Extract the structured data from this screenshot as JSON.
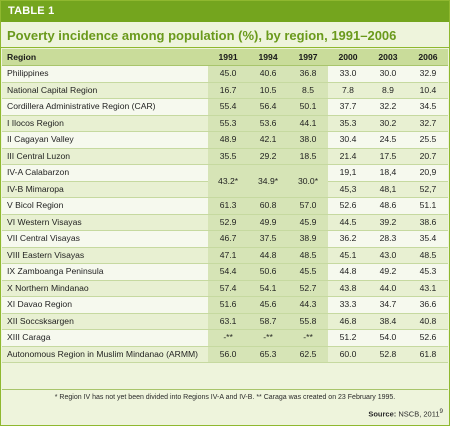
{
  "label": "TABLE 1",
  "title": "Poverty incidence among population (%), by region, 1991–2006",
  "headers": [
    "Region",
    "1991",
    "1994",
    "1997",
    "2000",
    "2003",
    "2006"
  ],
  "rows": [
    {
      "region": "Philippines",
      "v": [
        "45.0",
        "40.6",
        "36.8",
        "33.0",
        "30.0",
        "32.9"
      ]
    },
    {
      "region": "National Capital Region",
      "v": [
        "16.7",
        "10.5",
        "8.5",
        "7.8",
        "8.9",
        "10.4"
      ]
    },
    {
      "region": "Cordillera Administrative Region (CAR)",
      "v": [
        "55.4",
        "56.4",
        "50.1",
        "37.7",
        "32.2",
        "34.5"
      ]
    },
    {
      "region": "I Ilocos Region",
      "v": [
        "55.3",
        "53.6",
        "44.1",
        "35.3",
        "30.2",
        "32.7"
      ]
    },
    {
      "region": "II Cagayan Valley",
      "v": [
        "48.9",
        "42.1",
        "38.0",
        "30.4",
        "24.5",
        "25.5"
      ]
    },
    {
      "region": "III Central Luzon",
      "v": [
        "35.5",
        "29.2",
        "18.5",
        "21.4",
        "17.5",
        "20.7"
      ]
    },
    {
      "region": "IV-A Calabarzon",
      "v": [
        "19,1",
        "18,4",
        "20,9"
      ]
    },
    {
      "region": "IV-B Mimaropa",
      "v": [
        "45,3",
        "48,1",
        "52,7"
      ]
    },
    {
      "region": "V Bicol Region",
      "v": [
        "61.3",
        "60.8",
        "57.0",
        "52.6",
        "48.6",
        "51.1"
      ]
    },
    {
      "region": "VI Western Visayas",
      "v": [
        "52.9",
        "49.9",
        "45.9",
        "44.5",
        "39.2",
        "38.6"
      ]
    },
    {
      "region": "VII Central Visayas",
      "v": [
        "46.7",
        "37.5",
        "38.9",
        "36.2",
        "28.3",
        "35.4"
      ]
    },
    {
      "region": "VIII Eastern Visayas",
      "v": [
        "47.1",
        "44.8",
        "48.5",
        "45.1",
        "43.0",
        "48.5"
      ]
    },
    {
      "region": "IX Zamboanga Peninsula",
      "v": [
        "54.4",
        "50.6",
        "45.5",
        "44.8",
        "49.2",
        "45.3"
      ]
    },
    {
      "region": "X Northern Mindanao",
      "v": [
        "57.4",
        "54.1",
        "52.7",
        "43.8",
        "44.0",
        "43.1"
      ]
    },
    {
      "region": "XI Davao Region",
      "v": [
        "51.6",
        "45.6",
        "44.3",
        "33.3",
        "34.7",
        "36.6"
      ]
    },
    {
      "region": "XII Soccsksargen",
      "v": [
        "63.1",
        "58.7",
        "55.8",
        "46.8",
        "38.4",
        "40.8"
      ]
    },
    {
      "region": "XIII Caraga",
      "v": [
        "-**",
        "-**",
        "-**",
        "51.2",
        "54.0",
        "52.6"
      ]
    },
    {
      "region": "Autonomous Region in Muslim Mindanao (ARMM)",
      "v": [
        "56.0",
        "65.3",
        "62.5",
        "60.0",
        "52.8",
        "61.8"
      ]
    }
  ],
  "merged_region_iv": [
    "43.2*",
    "34.9*",
    "30.0*"
  ],
  "footnote": "* Region IV has not yet been divided into Regions IV-A and IV-B.   ** Caraga was created on 23 February 1995.",
  "source_label": "Source:",
  "source_value": "NSCB, 2011",
  "source_sup": "9",
  "colors": {
    "accent": "#74a51e",
    "panel": "#eef4dc",
    "header": "#c9dc9a"
  }
}
